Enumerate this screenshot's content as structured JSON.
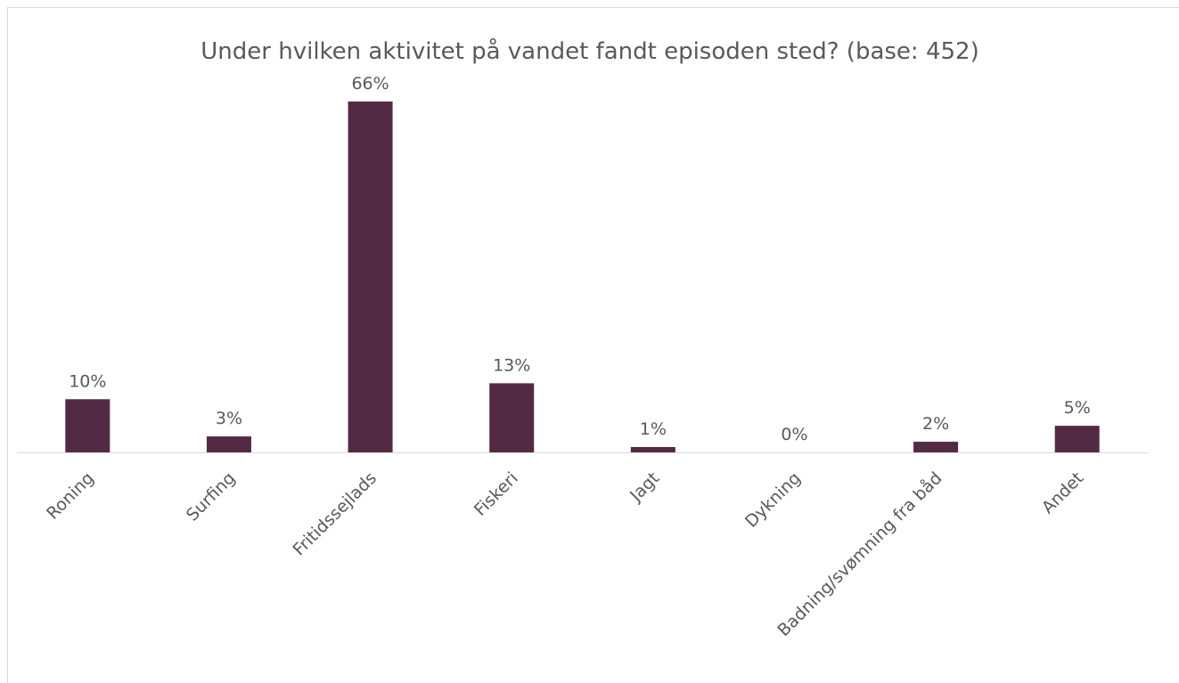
{
  "chart_data": {
    "type": "bar",
    "title": "Under hvilken aktivitet på vandet fandt episoden sted? (base: 452)",
    "categories": [
      "Roning",
      "Surfing",
      "Fritidssejlads",
      "Fiskeri",
      "Jagt",
      "Dykning",
      "Badning/svømning fra båd",
      "Andet"
    ],
    "values": [
      10,
      3,
      66,
      13,
      1,
      0,
      2,
      5
    ],
    "value_labels": [
      "10%",
      "3%",
      "66%",
      "13%",
      "1%",
      "0%",
      "2%",
      "5%"
    ],
    "color": "#532a43"
  }
}
